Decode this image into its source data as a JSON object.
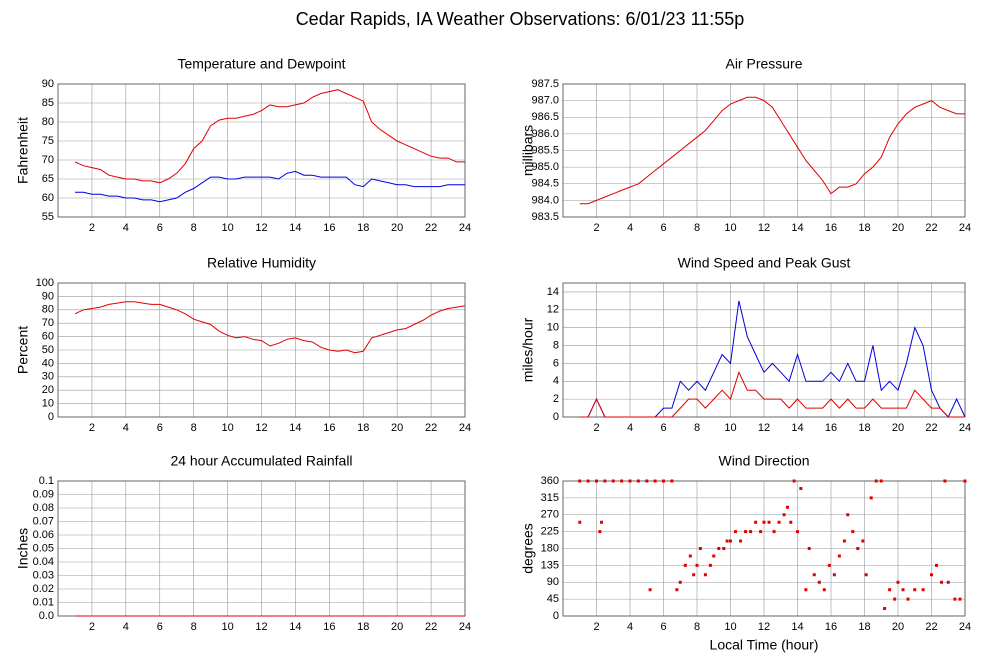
{
  "title": "Cedar Rapids, IA Weather Observations: 6/01/23 11:55p",
  "chart_data": [
    {
      "type": "line",
      "title": "Temperature and Dewpoint",
      "ylabel": "Fahrenheit",
      "x": [
        1,
        1.5,
        2,
        2.5,
        3,
        3.5,
        4,
        4.5,
        5,
        5.5,
        6,
        6.5,
        7,
        7.5,
        8,
        8.5,
        9,
        9.5,
        10,
        10.5,
        11,
        11.5,
        12,
        12.5,
        13,
        13.5,
        14,
        14.5,
        15,
        15.5,
        16,
        16.5,
        17,
        17.5,
        18,
        18.5,
        19,
        19.5,
        20,
        20.5,
        21,
        21.5,
        22,
        22.5,
        23,
        23.5,
        24
      ],
      "series": [
        {
          "color": "#e00000",
          "values": [
            69.5,
            68.5,
            68,
            67.5,
            66,
            65.5,
            65,
            65,
            64.5,
            64.5,
            64,
            65,
            66.5,
            69,
            73,
            75,
            79,
            80.5,
            81,
            81,
            81.5,
            82,
            83,
            84.5,
            84,
            84,
            84.5,
            85,
            86.5,
            87.5,
            88,
            88.5,
            87.5,
            86.5,
            85.5,
            80,
            78,
            76.5,
            75,
            74,
            73,
            72,
            71,
            70.5,
            70.5,
            69.5,
            69.5
          ]
        },
        {
          "color": "#0000e0",
          "values": [
            61.5,
            61.5,
            61,
            61,
            60.5,
            60.5,
            60,
            60,
            59.5,
            59.5,
            59,
            59.5,
            60,
            61.5,
            62.5,
            64,
            65.5,
            65.5,
            65,
            65,
            65.5,
            65.5,
            65.5,
            65.5,
            65,
            66.5,
            67,
            66,
            66,
            65.5,
            65.5,
            65.5,
            65.5,
            63.5,
            63,
            65,
            64.5,
            64,
            63.5,
            63.5,
            63,
            63,
            63,
            63,
            63.5,
            63.5,
            63.5
          ]
        }
      ],
      "xlim": [
        0,
        24
      ],
      "xticks": [
        2,
        4,
        6,
        8,
        10,
        12,
        14,
        16,
        18,
        20,
        22,
        24
      ],
      "ylim": [
        55,
        90
      ],
      "yticks": [
        55,
        60,
        65,
        70,
        75,
        80,
        85,
        90
      ],
      "grid": true
    },
    {
      "type": "line",
      "title": "Air Pressure",
      "ylabel": "millibars",
      "x": [
        1,
        1.5,
        2,
        2.5,
        3,
        3.5,
        4,
        4.5,
        5,
        5.5,
        6,
        6.5,
        7,
        7.5,
        8,
        8.5,
        9,
        9.5,
        10,
        10.5,
        11,
        11.5,
        12,
        12.5,
        13,
        13.5,
        14,
        14.5,
        15,
        15.5,
        16,
        16.5,
        17,
        17.5,
        18,
        18.5,
        19,
        19.5,
        20,
        20.5,
        21,
        21.5,
        22,
        22.5,
        23,
        23.5,
        24
      ],
      "series": [
        {
          "color": "#e00000",
          "values": [
            983.9,
            983.9,
            984.0,
            984.1,
            984.2,
            984.3,
            984.4,
            984.5,
            984.7,
            984.9,
            985.1,
            985.3,
            985.5,
            985.7,
            985.9,
            986.1,
            986.4,
            986.7,
            986.9,
            987.0,
            987.1,
            987.1,
            987.0,
            986.8,
            986.4,
            986.0,
            985.6,
            985.2,
            984.9,
            984.6,
            984.2,
            984.4,
            984.4,
            984.5,
            984.8,
            985.0,
            985.3,
            985.9,
            986.3,
            986.6,
            986.8,
            986.9,
            987.0,
            986.8,
            986.7,
            986.6,
            986.6
          ]
        }
      ],
      "xlim": [
        0,
        24
      ],
      "xticks": [
        2,
        4,
        6,
        8,
        10,
        12,
        14,
        16,
        18,
        20,
        22,
        24
      ],
      "ylim": [
        983.5,
        987.5
      ],
      "yticks": [
        983.5,
        {
          "value": 984,
          "label": "984.0"
        },
        984.5,
        {
          "value": 985,
          "label": "985.0"
        },
        985.5,
        {
          "value": 986,
          "label": "986.0"
        },
        986.5,
        {
          "value": 987,
          "label": "987.0"
        },
        987.5
      ],
      "grid": true
    },
    {
      "type": "line",
      "title": "Relative Humidity",
      "ylabel": "Percent",
      "x": [
        1,
        1.5,
        2,
        2.5,
        3,
        3.5,
        4,
        4.5,
        5,
        5.5,
        6,
        6.5,
        7,
        7.5,
        8,
        8.5,
        9,
        9.5,
        10,
        10.5,
        11,
        11.5,
        12,
        12.5,
        13,
        13.5,
        14,
        14.5,
        15,
        15.5,
        16,
        16.5,
        17,
        17.5,
        18,
        18.5,
        19,
        19.5,
        20,
        20.5,
        21,
        21.5,
        22,
        22.5,
        23,
        23.5,
        24
      ],
      "series": [
        {
          "color": "#e00000",
          "values": [
            77,
            80,
            81,
            82,
            84,
            85,
            86,
            86,
            85,
            84,
            84,
            82,
            80,
            77,
            73,
            71,
            69,
            64,
            61,
            59,
            60,
            58,
            57,
            53,
            55,
            58,
            59,
            57,
            56,
            52,
            50,
            49,
            50,
            48,
            49,
            59,
            61,
            63,
            65,
            66,
            69,
            72,
            76,
            79,
            81,
            82,
            83
          ]
        }
      ],
      "xlim": [
        0,
        24
      ],
      "xticks": [
        2,
        4,
        6,
        8,
        10,
        12,
        14,
        16,
        18,
        20,
        22,
        24
      ],
      "ylim": [
        0,
        100
      ],
      "yticks": [
        0,
        10,
        20,
        30,
        40,
        50,
        60,
        70,
        80,
        90,
        100
      ],
      "grid": true
    },
    {
      "type": "line",
      "title": "Wind Speed and Peak Gust",
      "ylabel": "miles/hour",
      "x": [
        1,
        1.5,
        2,
        2.5,
        3,
        3.5,
        4,
        4.5,
        5,
        5.5,
        6,
        6.5,
        7,
        7.5,
        8,
        8.5,
        9,
        9.5,
        10,
        10.5,
        11,
        11.5,
        12,
        12.5,
        13,
        13.5,
        14,
        14.5,
        15,
        15.5,
        16,
        16.5,
        17,
        17.5,
        18,
        18.5,
        19,
        19.5,
        20,
        20.5,
        21,
        21.5,
        22,
        22.5,
        23,
        23.5,
        24
      ],
      "series": [
        {
          "color": "#0000e0",
          "values": [
            0,
            0,
            2,
            0,
            0,
            0,
            0,
            0,
            0,
            0,
            1,
            1,
            4,
            3,
            4,
            3,
            5,
            7,
            6,
            13,
            9,
            7,
            5,
            6,
            5,
            4,
            7,
            4,
            4,
            4,
            5,
            4,
            6,
            4,
            4,
            8,
            3,
            4,
            3,
            6,
            10,
            8,
            3,
            1,
            0,
            2,
            0
          ]
        },
        {
          "color": "#e00000",
          "values": [
            0,
            0,
            2,
            0,
            0,
            0,
            0,
            0,
            0,
            0,
            0,
            0,
            1,
            2,
            2,
            1,
            2,
            3,
            2,
            5,
            3,
            3,
            2,
            2,
            2,
            1,
            2,
            1,
            1,
            1,
            2,
            1,
            2,
            1,
            1,
            2,
            1,
            1,
            1,
            1,
            3,
            2,
            1,
            1,
            0,
            0,
            0
          ]
        }
      ],
      "xlim": [
        0,
        24
      ],
      "xticks": [
        2,
        4,
        6,
        8,
        10,
        12,
        14,
        16,
        18,
        20,
        22,
        24
      ],
      "ylim": [
        0,
        15
      ],
      "yticks": [
        0,
        2,
        4,
        6,
        8,
        10,
        12,
        14
      ],
      "grid": true
    },
    {
      "type": "line",
      "title": "24 hour Accumulated Rainfall",
      "ylabel": "Inches",
      "x": [
        1,
        24
      ],
      "series": [
        {
          "color": "#e00000",
          "values": [
            0,
            0
          ]
        }
      ],
      "xlim": [
        0,
        24
      ],
      "xticks": [
        2,
        4,
        6,
        8,
        10,
        12,
        14,
        16,
        18,
        20,
        22,
        24
      ],
      "ylim": [
        0,
        0.1
      ],
      "yticks": [
        {
          "value": 0,
          "label": "0.0"
        },
        0.01,
        0.02,
        0.03,
        0.04,
        0.05,
        0.06,
        0.07,
        0.08,
        0.09,
        0.1
      ],
      "grid": true
    },
    {
      "type": "scatter",
      "title": "Wind Direction",
      "ylabel": "degrees",
      "xlabel": "Local Time (hour)",
      "color": "#e00000",
      "x": [
        1,
        1,
        1.5,
        2,
        2.2,
        2.3,
        2.5,
        3,
        3.5,
        4,
        4.5,
        5,
        5.5,
        6,
        6.5,
        5.2,
        6.8,
        7,
        7.3,
        7.6,
        7.8,
        8,
        8.2,
        8.5,
        8.8,
        9,
        9.3,
        9.6,
        9.8,
        10,
        10.3,
        10.6,
        10.9,
        11.2,
        11.5,
        11.8,
        12,
        12.3,
        12.6,
        12.9,
        13.2,
        13.4,
        13.6,
        13.8,
        14,
        14.2,
        14.5,
        14.7,
        15,
        15.3,
        15.6,
        15.9,
        16.2,
        16.5,
        16.8,
        17,
        17.3,
        17.6,
        17.9,
        18.1,
        18.4,
        18.7,
        19,
        19.2,
        19.5,
        19.8,
        20,
        20.3,
        20.6,
        21,
        21.5,
        22,
        22.3,
        22.6,
        23,
        23.4,
        23.7,
        24,
        22.8
      ],
      "values": [
        360,
        250,
        360,
        360,
        225,
        250,
        360,
        360,
        360,
        360,
        360,
        360,
        360,
        360,
        360,
        70,
        70,
        90,
        135,
        160,
        110,
        135,
        180,
        110,
        135,
        160,
        180,
        180,
        200,
        200,
        225,
        200,
        225,
        225,
        250,
        225,
        250,
        250,
        225,
        250,
        270,
        290,
        250,
        360,
        225,
        340,
        70,
        180,
        110,
        90,
        70,
        135,
        110,
        160,
        200,
        270,
        225,
        180,
        200,
        110,
        315,
        360,
        360,
        20,
        70,
        45,
        90,
        70,
        45,
        70,
        70,
        110,
        135,
        90,
        90,
        45,
        45,
        360,
        360
      ],
      "xlim": [
        0,
        24
      ],
      "xticks": [
        2,
        4,
        6,
        8,
        10,
        12,
        14,
        16,
        18,
        20,
        22,
        24
      ],
      "ylim": [
        0,
        360
      ],
      "yticks": [
        0,
        45,
        90,
        135,
        180,
        225,
        270,
        315,
        360
      ],
      "grid": true
    }
  ]
}
